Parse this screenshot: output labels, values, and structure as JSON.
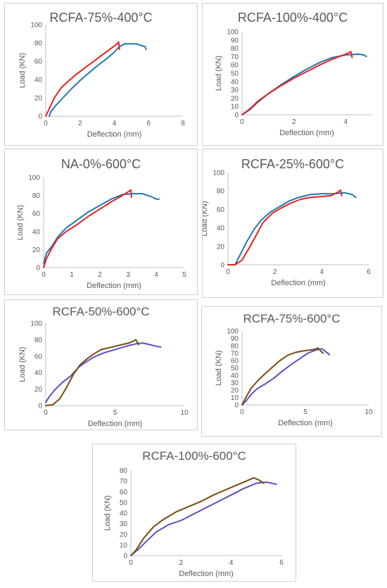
{
  "chart_data": [
    {
      "type": "line",
      "title": "RCFA-75%-400°C",
      "xlabel": "Deflection (mm)",
      "ylabel": "Load (KN)",
      "xlim": [
        0,
        8
      ],
      "ylim": [
        0,
        100
      ],
      "xticks": [
        0,
        2,
        4,
        6,
        8
      ],
      "yticks": [
        0,
        20,
        40,
        60,
        80,
        100
      ],
      "grid": false,
      "series": [
        {
          "color": "#1f77b4",
          "points": [
            [
              0.2,
              0
            ],
            [
              0.3,
              5
            ],
            [
              0.6,
              12
            ],
            [
              1.0,
              20
            ],
            [
              1.5,
              30
            ],
            [
              2.0,
              39
            ],
            [
              2.5,
              47
            ],
            [
              3.0,
              55
            ],
            [
              3.5,
              62
            ],
            [
              4.0,
              70
            ],
            [
              4.3,
              76
            ],
            [
              4.6,
              79
            ],
            [
              5.0,
              79
            ],
            [
              5.3,
              79
            ],
            [
              5.6,
              77
            ],
            [
              5.8,
              76
            ],
            [
              5.85,
              73
            ]
          ]
        },
        {
          "color": "#e8201f",
          "points": [
            [
              0,
              0
            ],
            [
              0.2,
              8
            ],
            [
              0.5,
              20
            ],
            [
              0.9,
              31
            ],
            [
              1.3,
              38
            ],
            [
              1.8,
              46
            ],
            [
              2.3,
              53
            ],
            [
              2.8,
              60
            ],
            [
              3.3,
              67
            ],
            [
              3.8,
              74
            ],
            [
              4.1,
              78
            ],
            [
              4.25,
              81
            ],
            [
              4.3,
              73
            ]
          ]
        }
      ]
    },
    {
      "type": "line",
      "title": "RCFA-100%-400°C",
      "xlabel": "Deflection (mm)",
      "ylabel": "Load (KN)",
      "xlim": [
        0,
        5
      ],
      "ylim": [
        0,
        100
      ],
      "xticks": [
        0,
        2,
        4
      ],
      "yticks": [
        0,
        10,
        20,
        30,
        40,
        50,
        60,
        70,
        80,
        90,
        100
      ],
      "grid": false,
      "series": [
        {
          "color": "#1f77b4",
          "points": [
            [
              0,
              0
            ],
            [
              0.3,
              6
            ],
            [
              0.6,
              15
            ],
            [
              1.0,
              25
            ],
            [
              1.5,
              36
            ],
            [
              2.0,
              46
            ],
            [
              2.5,
              55
            ],
            [
              3.0,
              63
            ],
            [
              3.5,
              69
            ],
            [
              4.0,
              72
            ],
            [
              4.5,
              73
            ],
            [
              4.7,
              72
            ],
            [
              4.8,
              70
            ]
          ]
        },
        {
          "color": "#e8201f",
          "points": [
            [
              0,
              0
            ],
            [
              0.3,
              7
            ],
            [
              0.6,
              16
            ],
            [
              1.0,
              25
            ],
            [
              1.5,
              35
            ],
            [
              2.0,
              44
            ],
            [
              2.5,
              52
            ],
            [
              3.0,
              60
            ],
            [
              3.5,
              67
            ],
            [
              4.0,
              73
            ],
            [
              4.2,
              76
            ],
            [
              4.25,
              69
            ]
          ]
        }
      ]
    },
    {
      "type": "line",
      "title": "NA-0%-600°C",
      "xlabel": "Deflection (mm)",
      "ylabel": "Load (KN)",
      "xlim": [
        0,
        5
      ],
      "ylim": [
        0,
        100
      ],
      "xticks": [
        0,
        1,
        2,
        3,
        4,
        5
      ],
      "yticks": [
        0,
        20,
        40,
        60,
        80,
        100
      ],
      "grid": false,
      "series": [
        {
          "color": "#1f77b4",
          "points": [
            [
              0,
              5
            ],
            [
              0.1,
              16
            ],
            [
              0.3,
              24
            ],
            [
              0.5,
              34
            ],
            [
              0.8,
              44
            ],
            [
              1.2,
              53
            ],
            [
              1.6,
              62
            ],
            [
              2.0,
              69
            ],
            [
              2.4,
              76
            ],
            [
              2.8,
              81
            ],
            [
              3.2,
              82
            ],
            [
              3.5,
              82
            ],
            [
              3.8,
              79
            ],
            [
              4.0,
              76
            ],
            [
              4.1,
              76
            ]
          ]
        },
        {
          "color": "#e8201f",
          "points": [
            [
              0,
              0
            ],
            [
              0.1,
              10
            ],
            [
              0.3,
              22
            ],
            [
              0.5,
              32
            ],
            [
              0.8,
              40
            ],
            [
              1.2,
              48
            ],
            [
              1.6,
              57
            ],
            [
              2.0,
              65
            ],
            [
              2.4,
              73
            ],
            [
              2.8,
              80
            ],
            [
              3.0,
              84
            ],
            [
              3.1,
              86
            ],
            [
              3.12,
              78
            ]
          ]
        }
      ]
    },
    {
      "type": "line",
      "title": "RCFA-25%-600°C",
      "xlabel": "Deflection (mm)",
      "ylabel": "Load (KN)",
      "xlim": [
        0,
        6
      ],
      "ylim": [
        0,
        100
      ],
      "xticks": [
        0,
        2,
        4,
        6
      ],
      "yticks": [
        0,
        20,
        40,
        60,
        80,
        100
      ],
      "grid": false,
      "series": [
        {
          "color": "#1f77b4",
          "points": [
            [
              0.3,
              0
            ],
            [
              0.5,
              10
            ],
            [
              0.8,
              25
            ],
            [
              1.1,
              38
            ],
            [
              1.4,
              48
            ],
            [
              1.8,
              57
            ],
            [
              2.2,
              63
            ],
            [
              2.6,
              69
            ],
            [
              3.0,
              73
            ],
            [
              3.5,
              76
            ],
            [
              4.0,
              77
            ],
            [
              4.5,
              77
            ],
            [
              5.0,
              78
            ],
            [
              5.3,
              76
            ],
            [
              5.45,
              73
            ]
          ]
        },
        {
          "color": "#e8201f",
          "points": [
            [
              0,
              0
            ],
            [
              0.3,
              0
            ],
            [
              0.6,
              5
            ],
            [
              0.9,
              18
            ],
            [
              1.2,
              32
            ],
            [
              1.5,
              46
            ],
            [
              1.9,
              56
            ],
            [
              2.3,
              62
            ],
            [
              2.7,
              67
            ],
            [
              3.1,
              71
            ],
            [
              3.5,
              73
            ],
            [
              4.0,
              74
            ],
            [
              4.4,
              75
            ],
            [
              4.7,
              79
            ],
            [
              4.8,
              81
            ],
            [
              4.85,
              75
            ]
          ]
        }
      ]
    },
    {
      "type": "line",
      "title": "RCFA-50%-600°C",
      "xlabel": "Deflection (mm)",
      "ylabel": "Load (KN)",
      "xlim": [
        0,
        10
      ],
      "ylim": [
        0,
        100
      ],
      "xticks": [
        0,
        5,
        10
      ],
      "yticks": [
        0,
        20,
        40,
        60,
        80,
        100
      ],
      "grid": false,
      "series": [
        {
          "color": "#5b4fc4",
          "points": [
            [
              0,
              4
            ],
            [
              0.3,
              12
            ],
            [
              0.7,
              20
            ],
            [
              1.2,
              28
            ],
            [
              1.8,
              36
            ],
            [
              2.4,
              47
            ],
            [
              3.0,
              54
            ],
            [
              3.6,
              60
            ],
            [
              4.2,
              64
            ],
            [
              4.8,
              67
            ],
            [
              5.4,
              70
            ],
            [
              6.0,
              73
            ],
            [
              6.5,
              75
            ],
            [
              7.0,
              76
            ],
            [
              7.5,
              74
            ],
            [
              8.0,
              72
            ],
            [
              8.3,
              71
            ]
          ]
        },
        {
          "color": "#7a4a13",
          "points": [
            [
              0,
              0
            ],
            [
              0.5,
              1
            ],
            [
              1.0,
              8
            ],
            [
              1.5,
              22
            ],
            [
              2.0,
              38
            ],
            [
              2.5,
              50
            ],
            [
              3.0,
              57
            ],
            [
              3.5,
              63
            ],
            [
              4.0,
              68
            ],
            [
              4.5,
              70
            ],
            [
              5.0,
              72
            ],
            [
              5.5,
              74
            ],
            [
              6.0,
              76
            ],
            [
              6.3,
              78
            ],
            [
              6.5,
              80
            ],
            [
              6.7,
              74
            ]
          ]
        }
      ]
    },
    {
      "type": "line",
      "title": "RCFA-75%-600°C",
      "xlabel": "Deflection (mm)",
      "ylabel": "Load (KN)",
      "xlim": [
        0,
        10
      ],
      "ylim": [
        0,
        100
      ],
      "xticks": [
        0,
        5,
        10
      ],
      "yticks": [
        0,
        10,
        20,
        30,
        40,
        50,
        60,
        70,
        80,
        90,
        100
      ],
      "grid": false,
      "series": [
        {
          "color": "#5b4fc4",
          "points": [
            [
              0,
              0
            ],
            [
              0.3,
              5
            ],
            [
              0.7,
              14
            ],
            [
              1.2,
              22
            ],
            [
              1.8,
              28
            ],
            [
              2.5,
              36
            ],
            [
              3.2,
              46
            ],
            [
              3.9,
              55
            ],
            [
              4.6,
              63
            ],
            [
              5.2,
              70
            ],
            [
              5.8,
              74
            ],
            [
              6.3,
              76
            ],
            [
              6.6,
              72
            ],
            [
              6.9,
              68
            ]
          ]
        },
        {
          "color": "#7a4a13",
          "points": [
            [
              0,
              0
            ],
            [
              0.3,
              10
            ],
            [
              0.7,
              22
            ],
            [
              1.2,
              32
            ],
            [
              1.8,
              42
            ],
            [
              2.4,
              51
            ],
            [
              3.0,
              60
            ],
            [
              3.6,
              67
            ],
            [
              4.2,
              71
            ],
            [
              4.8,
              73
            ],
            [
              5.3,
              74
            ],
            [
              5.7,
              75
            ],
            [
              6.0,
              77
            ],
            [
              6.2,
              73
            ],
            [
              6.4,
              70
            ]
          ]
        }
      ]
    },
    {
      "type": "line",
      "title": "RCFA-100%-600°C",
      "xlabel": "Deflection (mm)",
      "ylabel": "Load (KN)",
      "xlim": [
        0,
        6
      ],
      "ylim": [
        0,
        80
      ],
      "xticks": [
        0,
        2,
        4,
        6
      ],
      "yticks": [
        0,
        10,
        20,
        30,
        40,
        50,
        60,
        70,
        80
      ],
      "grid": false,
      "series": [
        {
          "color": "#5b4fc4",
          "points": [
            [
              0,
              0
            ],
            [
              0.3,
              6
            ],
            [
              0.6,
              13
            ],
            [
              1.0,
              22
            ],
            [
              1.5,
              29
            ],
            [
              2.0,
              33
            ],
            [
              2.5,
              39
            ],
            [
              3.0,
              45
            ],
            [
              3.5,
              51
            ],
            [
              4.0,
              57
            ],
            [
              4.5,
              63
            ],
            [
              5.0,
              68
            ],
            [
              5.4,
              69
            ],
            [
              5.8,
              67
            ]
          ]
        },
        {
          "color": "#7a4a13",
          "points": [
            [
              0,
              0
            ],
            [
              0.2,
              5
            ],
            [
              0.5,
              16
            ],
            [
              0.9,
              27
            ],
            [
              1.3,
              34
            ],
            [
              1.8,
              41
            ],
            [
              2.3,
              46
            ],
            [
              2.8,
              51
            ],
            [
              3.3,
              57
            ],
            [
              3.8,
              62
            ],
            [
              4.3,
              67
            ],
            [
              4.7,
              71
            ],
            [
              4.9,
              73
            ],
            [
              5.1,
              71
            ],
            [
              5.3,
              68
            ]
          ]
        }
      ]
    }
  ]
}
